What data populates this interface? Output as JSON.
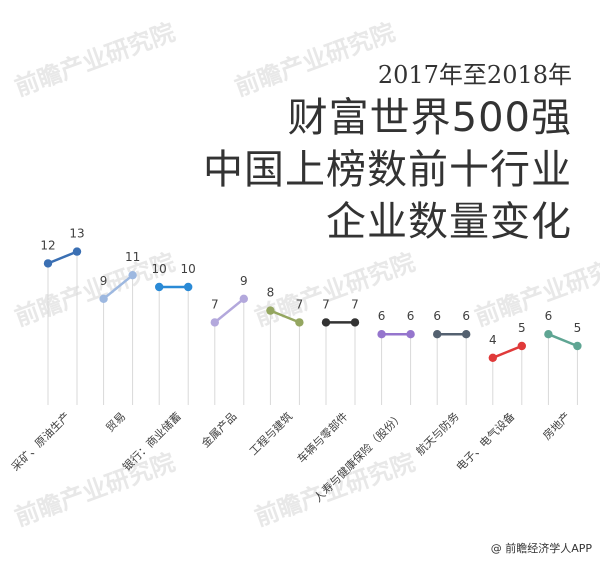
{
  "title": {
    "year_range": "2017年至2018年",
    "lines": [
      "财富世界500强",
      "中国上榜数前十行业",
      "企业数量变化"
    ]
  },
  "source": "@ 前瞻经济学人APP",
  "watermark": "前瞻产业研究院",
  "chart_data": {
    "type": "line",
    "x": [
      "2017",
      "2018"
    ],
    "ylim": [
      0,
      14
    ],
    "grid": false,
    "legend": "none",
    "categories": [
      "采矿、原油生产",
      "贸易",
      "银行：商业储蓄",
      "金属产品",
      "工程与建筑",
      "车辆与零部件",
      "人寿与健康保险（股份）",
      "航天与防务",
      "电子、电气设备",
      "房地产"
    ],
    "series": [
      {
        "values": [
          12,
          13
        ],
        "color": "#3a6fb3"
      },
      {
        "values": [
          9,
          11
        ],
        "color": "#9db8e0"
      },
      {
        "values": [
          10,
          10
        ],
        "color": "#2a8ad6"
      },
      {
        "values": [
          7,
          9
        ],
        "color": "#b3a8dc"
      },
      {
        "values": [
          8,
          7
        ],
        "color": "#94a660"
      },
      {
        "values": [
          7,
          7
        ],
        "color": "#333333"
      },
      {
        "values": [
          6,
          6
        ],
        "color": "#9575cd"
      },
      {
        "values": [
          6,
          6
        ],
        "color": "#546170"
      },
      {
        "values": [
          4,
          5
        ],
        "color": "#e03a3a"
      },
      {
        "values": [
          6,
          5
        ],
        "color": "#5fa593"
      }
    ]
  }
}
